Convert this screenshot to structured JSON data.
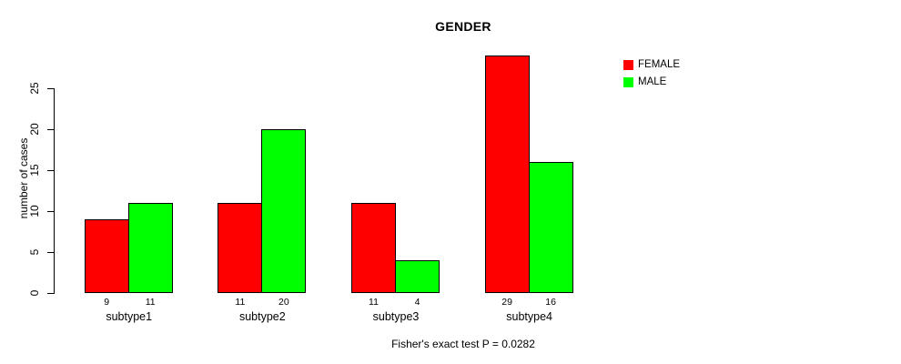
{
  "chart_data": {
    "type": "bar",
    "title": "GENDER",
    "xlabel": "",
    "ylabel": "number of cases",
    "categories": [
      "subtype1",
      "subtype2",
      "subtype3",
      "subtype4"
    ],
    "series": [
      {
        "name": "FEMALE",
        "color": "#FF0000",
        "values": [
          9,
          11,
          11,
          29
        ]
      },
      {
        "name": "MALE",
        "color": "#00FF00",
        "values": [
          11,
          20,
          4,
          16
        ]
      }
    ],
    "yticks": [
      0,
      5,
      10,
      15,
      20,
      25
    ],
    "ylim": [
      0,
      29
    ],
    "bar_value_labels": [
      "9",
      "11",
      "11",
      "20",
      "11",
      "4",
      "29",
      "16"
    ],
    "legend_position": "top-right",
    "grid": false,
    "footnote": "Fisher's exact test P = 0.0282",
    "colors": {
      "female": "#FF0000",
      "male": "#00FF00",
      "axis": "#000000",
      "background": "#FFFFFF"
    }
  }
}
